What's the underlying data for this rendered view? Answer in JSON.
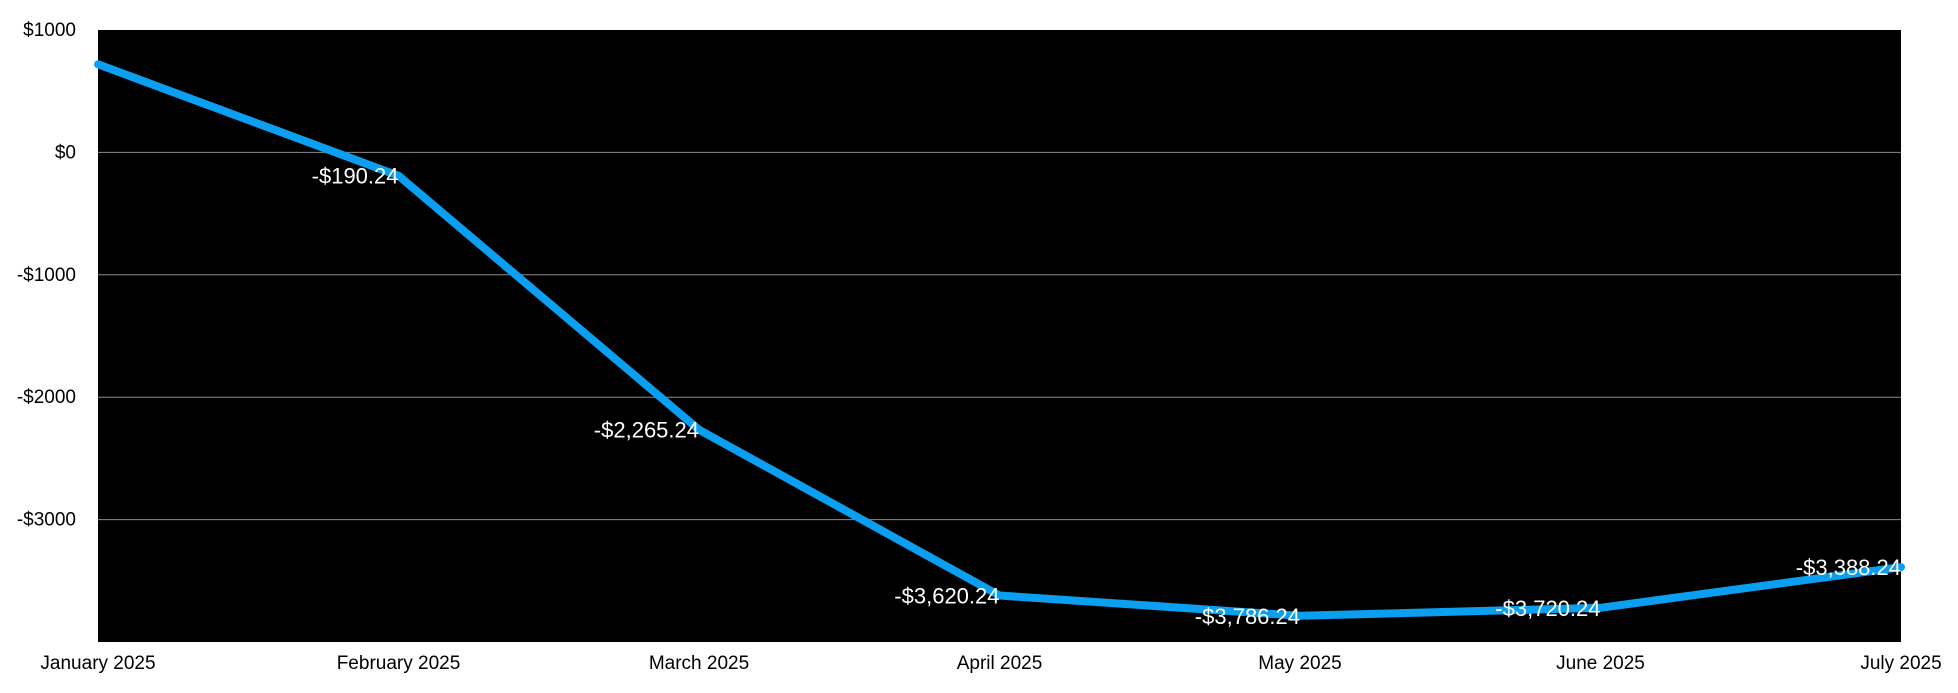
{
  "chart_data": {
    "type": "line",
    "title": "",
    "xlabel": "",
    "ylabel": "",
    "categories": [
      "January 2025",
      "February 2025",
      "March 2025",
      "April 2025",
      "May 2025",
      "June 2025",
      "July 2025"
    ],
    "series": [
      {
        "values": [
          720,
          -190.24,
          -2265.24,
          -3620.24,
          -3786.24,
          -3720.24,
          -3388.24
        ],
        "data_labels": [
          "",
          "-$190.24",
          "-$2,265.24",
          "-$3,620.24",
          "-$3,786.24",
          "-$3,720.24",
          "-$3,388.24"
        ],
        "color": "#0a9ff0"
      }
    ],
    "ylim": [
      -4000,
      1000
    ],
    "y_ticks": [
      1000,
      0,
      -1000,
      -2000,
      -3000
    ],
    "y_tick_labels": [
      "$1000",
      "$0",
      "-$1000",
      "-$2000",
      "-$3000"
    ],
    "grid": true,
    "plot_background": "#000000",
    "gridline_color": "#8c8c8c",
    "text_color_outside": "#000000",
    "text_color_labels": "#ffffff"
  }
}
